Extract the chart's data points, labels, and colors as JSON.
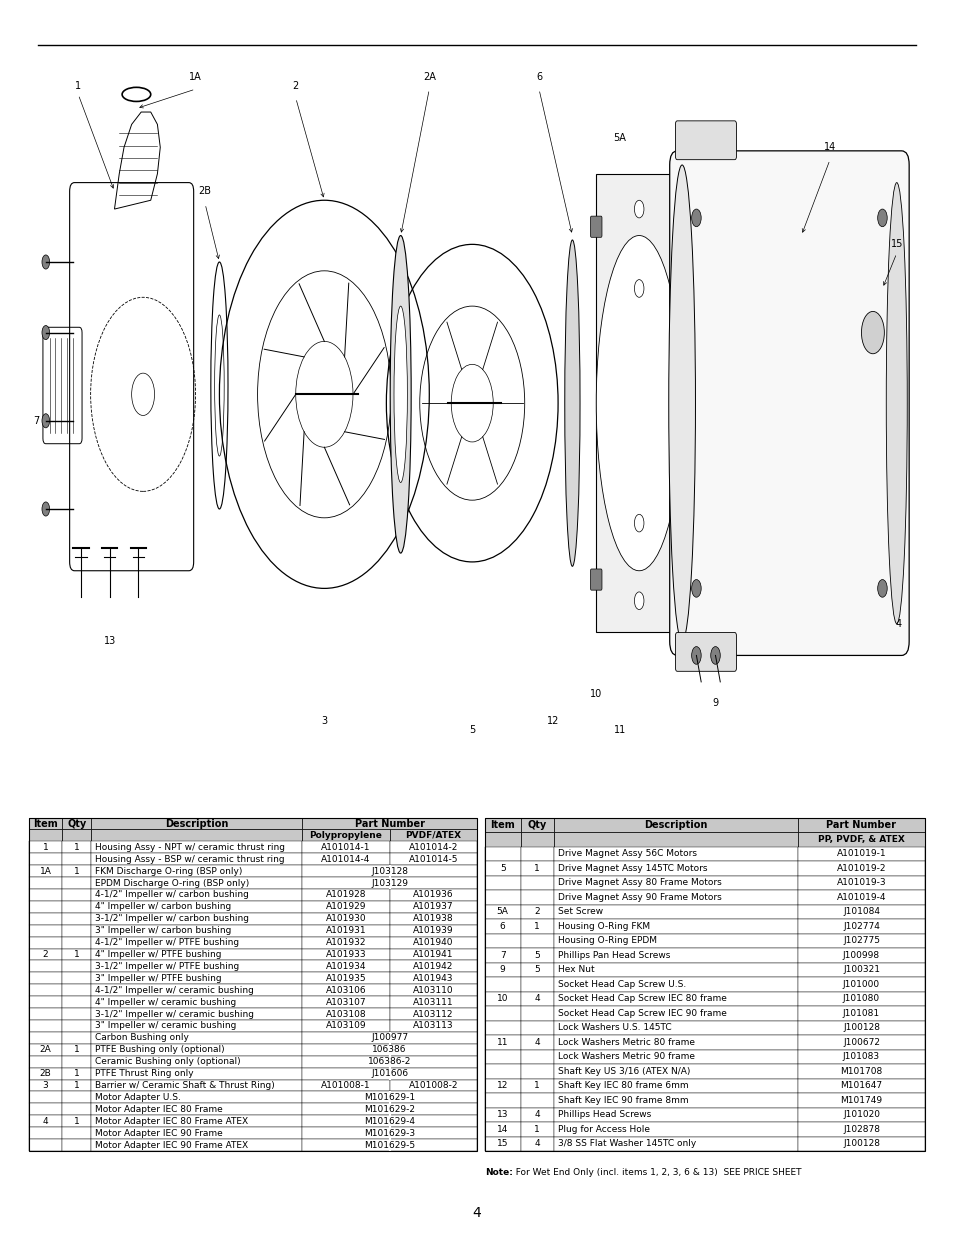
{
  "page_number": "4",
  "background_color": "#ffffff",
  "header_bg": "#c8c8c8",
  "font_size_table": 6.5,
  "font_size_header": 7.0,
  "left_table": {
    "rows": [
      {
        "item": "1",
        "qty": "1",
        "desc": "Housing Assy - NPT w/ ceramic thrust ring",
        "pp": "A101014-1",
        "pvdf": "A101014-2",
        "span_pp": false
      },
      {
        "item": "",
        "qty": "",
        "desc": "Housing Assy - BSP w/ ceramic thrust ring",
        "pp": "A101014-4",
        "pvdf": "A101014-5",
        "span_pp": false
      },
      {
        "item": "1A",
        "qty": "1",
        "desc": "FKM Discharge O-ring (BSP only)",
        "pp": "J103128",
        "pvdf": "",
        "span_pp": true
      },
      {
        "item": "",
        "qty": "",
        "desc": "EPDM Discharge O-ring (BSP only)",
        "pp": "J103129",
        "pvdf": "",
        "span_pp": true
      },
      {
        "item": "",
        "qty": "",
        "desc": "4-1/2\" Impeller w/ carbon bushing",
        "pp": "A101928",
        "pvdf": "A101936",
        "span_pp": false
      },
      {
        "item": "",
        "qty": "",
        "desc": "4\" Impeller w/ carbon bushing",
        "pp": "A101929",
        "pvdf": "A101937",
        "span_pp": false
      },
      {
        "item": "",
        "qty": "",
        "desc": "3-1/2\" Impeller w/ carbon bushing",
        "pp": "A101930",
        "pvdf": "A101938",
        "span_pp": false
      },
      {
        "item": "",
        "qty": "",
        "desc": "3\" Impeller w/ carbon bushing",
        "pp": "A101931",
        "pvdf": "A101939",
        "span_pp": false
      },
      {
        "item": "",
        "qty": "",
        "desc": "4-1/2\" Impeller w/ PTFE bushing",
        "pp": "A101932",
        "pvdf": "A101940",
        "span_pp": false
      },
      {
        "item": "2",
        "qty": "1",
        "desc": "4\" Impeller w/ PTFE bushing",
        "pp": "A101933",
        "pvdf": "A101941",
        "span_pp": false
      },
      {
        "item": "",
        "qty": "",
        "desc": "3-1/2\" Impeller w/ PTFE bushing",
        "pp": "A101934",
        "pvdf": "A101942",
        "span_pp": false
      },
      {
        "item": "",
        "qty": "",
        "desc": "3\" Impeller w/ PTFE bushing",
        "pp": "A101935",
        "pvdf": "A101943",
        "span_pp": false
      },
      {
        "item": "",
        "qty": "",
        "desc": "4-1/2\" Impeller w/ ceramic bushing",
        "pp": "A103106",
        "pvdf": "A103110",
        "span_pp": false
      },
      {
        "item": "",
        "qty": "",
        "desc": "4\" Impeller w/ ceramic bushing",
        "pp": "A103107",
        "pvdf": "A103111",
        "span_pp": false
      },
      {
        "item": "",
        "qty": "",
        "desc": "3-1/2\" Impeller w/ ceramic bushing",
        "pp": "A103108",
        "pvdf": "A103112",
        "span_pp": false
      },
      {
        "item": "",
        "qty": "",
        "desc": "3\" Impeller w/ ceramic bushing",
        "pp": "A103109",
        "pvdf": "A103113",
        "span_pp": false
      },
      {
        "item": "",
        "qty": "",
        "desc": "Carbon Bushing only",
        "pp": "J100977",
        "pvdf": "",
        "span_pp": true
      },
      {
        "item": "2A",
        "qty": "1",
        "desc": "PTFE Bushing only (optional)",
        "pp": "106386",
        "pvdf": "",
        "span_pp": true
      },
      {
        "item": "",
        "qty": "",
        "desc": "Ceramic Bushing only (optional)",
        "pp": "106386-2",
        "pvdf": "",
        "span_pp": true
      },
      {
        "item": "2B",
        "qty": "1",
        "desc": "PTFE Thrust Ring only",
        "pp": "J101606",
        "pvdf": "",
        "span_pp": true
      },
      {
        "item": "3",
        "qty": "1",
        "desc": "Barrier w/ Ceramic Shaft & Thrust Ring)",
        "pp": "A101008-1",
        "pvdf": "A101008-2",
        "span_pp": false
      },
      {
        "item": "",
        "qty": "",
        "desc": "Motor Adapter U.S.",
        "pp": "M101629-1",
        "pvdf": "",
        "span_pp": true
      },
      {
        "item": "",
        "qty": "",
        "desc": "Motor Adapter IEC 80 Frame",
        "pp": "M101629-2",
        "pvdf": "",
        "span_pp": true
      },
      {
        "item": "4",
        "qty": "1",
        "desc": "Motor Adapter IEC 80 Frame ATEX",
        "pp": "M101629-4",
        "pvdf": "",
        "span_pp": true
      },
      {
        "item": "",
        "qty": "",
        "desc": "Motor Adapter IEC 90 Frame",
        "pp": "M101629-3",
        "pvdf": "",
        "span_pp": true
      },
      {
        "item": "",
        "qty": "",
        "desc": "Motor Adapter IEC 90 Frame ATEX",
        "pp": "M101629-5",
        "pvdf": "",
        "span_pp": true
      }
    ]
  },
  "right_table": {
    "rows": [
      {
        "item": "",
        "qty": "",
        "desc": "Drive Magnet Assy 56C Motors",
        "pn": "A101019-1"
      },
      {
        "item": "5",
        "qty": "1",
        "desc": "Drive Magnet Assy 145TC Motors",
        "pn": "A101019-2"
      },
      {
        "item": "",
        "qty": "",
        "desc": "Drive Magnet Assy 80 Frame Motors",
        "pn": "A101019-3"
      },
      {
        "item": "",
        "qty": "",
        "desc": "Drive Magnet Assy 90 Frame Motors",
        "pn": "A101019-4"
      },
      {
        "item": "5A",
        "qty": "2",
        "desc": "Set Screw",
        "pn": "J101084"
      },
      {
        "item": "6",
        "qty": "1",
        "desc": "Housing O-Ring FKM",
        "pn": "J102774"
      },
      {
        "item": "",
        "qty": "",
        "desc": "Housing O-Ring EPDM",
        "pn": "J102775"
      },
      {
        "item": "7",
        "qty": "5",
        "desc": "Phillips Pan Head Screws",
        "pn": "J100998"
      },
      {
        "item": "9",
        "qty": "5",
        "desc": "Hex Nut",
        "pn": "J100321"
      },
      {
        "item": "",
        "qty": "",
        "desc": "Socket Head Cap Screw U.S.",
        "pn": "J101000"
      },
      {
        "item": "10",
        "qty": "4",
        "desc": "Socket Head Cap Screw IEC 80 frame",
        "pn": "J101080"
      },
      {
        "item": "",
        "qty": "",
        "desc": "Socket Head Cap Screw IEC 90 frame",
        "pn": "J101081"
      },
      {
        "item": "",
        "qty": "",
        "desc": "Lock Washers U.S. 145TC",
        "pn": "J100128"
      },
      {
        "item": "11",
        "qty": "4",
        "desc": "Lock Washers Metric 80 frame",
        "pn": "J100672"
      },
      {
        "item": "",
        "qty": "",
        "desc": "Lock Washers Metric 90 frame",
        "pn": "J101083"
      },
      {
        "item": "",
        "qty": "",
        "desc": "Shaft Key US 3/16 (ATEX N/A)",
        "pn": "M101708"
      },
      {
        "item": "12",
        "qty": "1",
        "desc": "Shaft Key IEC 80 frame 6mm",
        "pn": "M101647"
      },
      {
        "item": "",
        "qty": "",
        "desc": "Shaft Key IEC 90 frame 8mm",
        "pn": "M101749"
      },
      {
        "item": "13",
        "qty": "4",
        "desc": "Phillips Head Screws",
        "pn": "J101020"
      },
      {
        "item": "14",
        "qty": "1",
        "desc": "Plug for Access Hole",
        "pn": "J102878"
      },
      {
        "item": "15",
        "qty": "4",
        "desc": "3/8 SS Flat Washer 145TC only",
        "pn": "J100128"
      }
    ],
    "note_bold": "Note:",
    "note_rest": "  For Wet End Only (incl. items 1, 2, 3, 6 & 13)  SEE PRICE SHEET"
  }
}
